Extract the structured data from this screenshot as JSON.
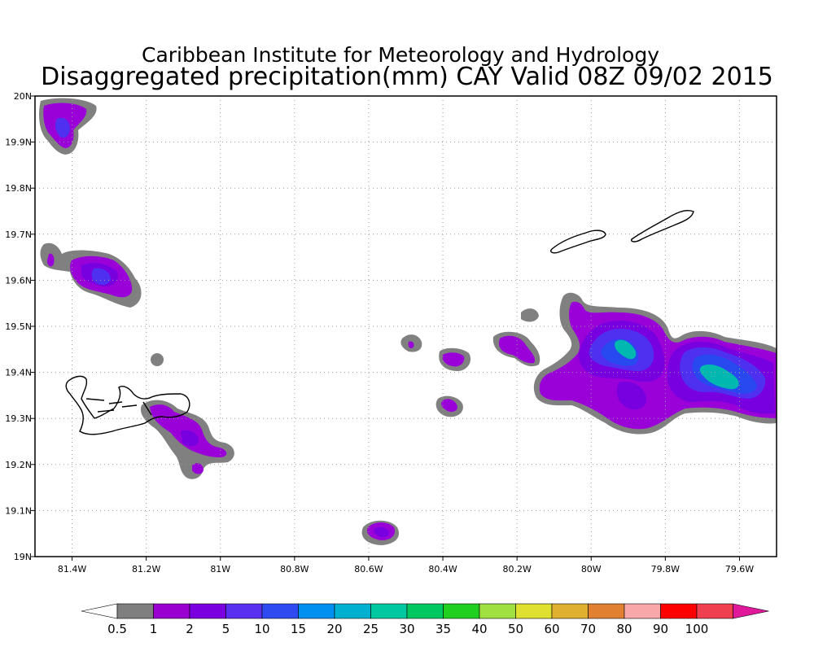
{
  "title": {
    "line1": "Caribbean Institute for Meteorology and Hydrology",
    "line2": "Disaggregated precipitation(mm) CAY Valid 08Z 09/02 2015"
  },
  "map": {
    "lon_range": [
      -81.5,
      -79.5
    ],
    "lat_range": [
      19.0,
      20.0
    ],
    "x_ticks": [
      {
        "lon": -81.4,
        "label": "81.4W"
      },
      {
        "lon": -81.2,
        "label": "81.2W"
      },
      {
        "lon": -81.0,
        "label": "81W"
      },
      {
        "lon": -80.8,
        "label": "80.8W"
      },
      {
        "lon": -80.6,
        "label": "80.6W"
      },
      {
        "lon": -80.4,
        "label": "80.4W"
      },
      {
        "lon": -80.2,
        "label": "80.2W"
      },
      {
        "lon": -80.0,
        "label": "80W"
      },
      {
        "lon": -79.8,
        "label": "79.8W"
      },
      {
        "lon": -79.6,
        "label": "79.6W"
      }
    ],
    "y_ticks": [
      {
        "lat": 20.0,
        "label": "20N"
      },
      {
        "lat": 19.9,
        "label": "19.9N"
      },
      {
        "lat": 19.8,
        "label": "19.8N"
      },
      {
        "lat": 19.7,
        "label": "19.7N"
      },
      {
        "lat": 19.6,
        "label": "19.6N"
      },
      {
        "lat": 19.5,
        "label": "19.5N"
      },
      {
        "lat": 19.4,
        "label": "19.4N"
      },
      {
        "lat": 19.3,
        "label": "19.3N"
      },
      {
        "lat": 19.2,
        "label": "19.2N"
      },
      {
        "lat": 19.1,
        "label": "19.1N"
      },
      {
        "lat": 19.0,
        "label": "19N"
      }
    ],
    "grid": true
  },
  "colorbar": {
    "labels": [
      "0.5",
      "1",
      "2",
      "5",
      "10",
      "15",
      "20",
      "25",
      "30",
      "35",
      "40",
      "50",
      "60",
      "70",
      "80",
      "90",
      "100"
    ],
    "colors": [
      "#7f7f7f",
      "#9a00d0",
      "#7a00e0",
      "#5a30f0",
      "#2f4af0",
      "#0090f0",
      "#00b0d0",
      "#00c8a0",
      "#00c860",
      "#20d020",
      "#a0e040",
      "#e0e030",
      "#e0b030",
      "#e08030",
      "#f8a8a8",
      "#ff0000",
      "#f04050"
    ],
    "low_end_color": "#ffffff",
    "high_end_color": "#e0189a"
  },
  "precip_levels": {
    "gray": "#808080",
    "purple": "#9a00d8",
    "violet": "#7800e0",
    "blue": "#5030f0",
    "deepblue": "#2848f0",
    "teal": "#00b8b0"
  }
}
